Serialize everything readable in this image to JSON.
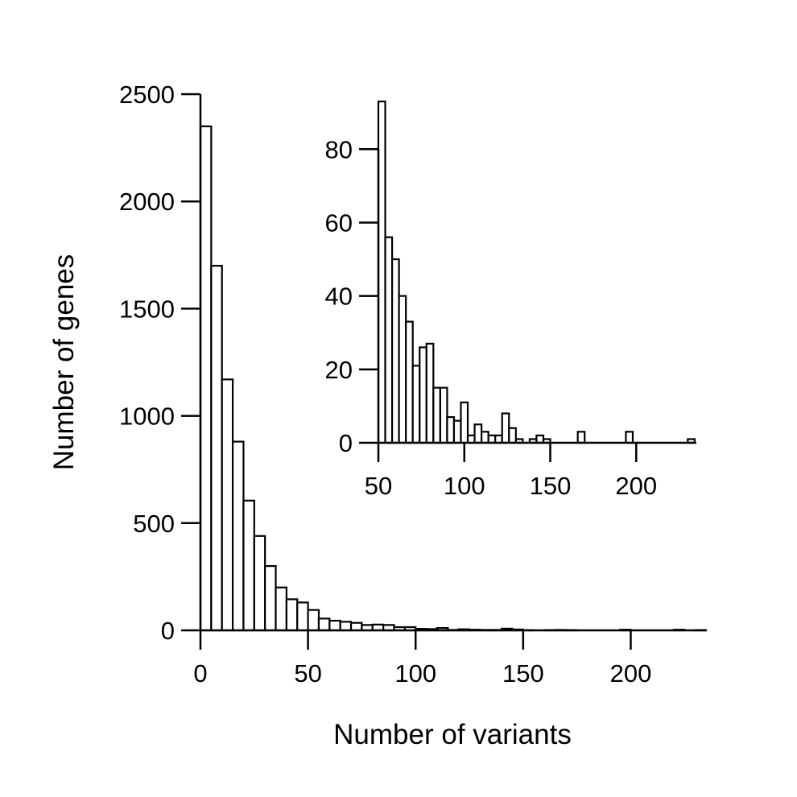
{
  "chart_data": [
    {
      "type": "bar",
      "role": "main",
      "xlabel": "Number of variants",
      "ylabel": "Number of genes",
      "xlim": [
        0,
        235
      ],
      "ylim": [
        0,
        2500
      ],
      "xticks": [
        0,
        50,
        100,
        150,
        200
      ],
      "yticks": [
        0,
        500,
        1000,
        1500,
        2000,
        2500
      ],
      "bin_width": 5,
      "bins_start": [
        0,
        5,
        10,
        15,
        20,
        25,
        30,
        35,
        40,
        45,
        50,
        55,
        60,
        65,
        70,
        75,
        80,
        85,
        90,
        95,
        100,
        105,
        110,
        115,
        120,
        125,
        130,
        135,
        140,
        145,
        150,
        155,
        160,
        165,
        170,
        175,
        180,
        185,
        190,
        195,
        200,
        205,
        210,
        215,
        220,
        225,
        230
      ],
      "values": [
        2350,
        1700,
        1170,
        880,
        605,
        440,
        300,
        200,
        145,
        130,
        95,
        55,
        45,
        40,
        35,
        25,
        27,
        25,
        15,
        15,
        7,
        6,
        11,
        2,
        5,
        3,
        2,
        2,
        8,
        4,
        1,
        0,
        1,
        2,
        1,
        0,
        0,
        0,
        0,
        3,
        0,
        0,
        0,
        0,
        3,
        0,
        1
      ],
      "grid": false
    },
    {
      "type": "bar",
      "role": "inset",
      "xlabel": "",
      "ylabel": "",
      "xlim": [
        50,
        235
      ],
      "ylim": [
        0,
        93
      ],
      "xticks": [
        50,
        100,
        150,
        200
      ],
      "yticks": [
        0,
        20,
        40,
        60,
        80
      ],
      "bin_width": 4,
      "bins_start": [
        50,
        54,
        58,
        62,
        66,
        70,
        74,
        78,
        82,
        86,
        90,
        94,
        98,
        102,
        106,
        110,
        114,
        118,
        122,
        126,
        130,
        134,
        138,
        142,
        146,
        150,
        154,
        158,
        162,
        166,
        170,
        174,
        178,
        182,
        186,
        190,
        194,
        198,
        202,
        206,
        210,
        214,
        218,
        222,
        226,
        230
      ],
      "values": [
        93,
        56,
        50,
        40,
        33,
        21,
        26,
        27,
        15,
        15,
        7,
        6,
        11,
        2,
        5,
        3,
        2,
        2,
        8,
        4,
        1,
        0,
        1,
        2,
        1,
        0,
        0,
        0,
        0,
        3,
        0,
        0,
        0,
        0,
        0,
        0,
        3,
        0,
        0,
        0,
        0,
        0,
        0,
        0,
        0,
        1
      ],
      "grid": false
    }
  ]
}
